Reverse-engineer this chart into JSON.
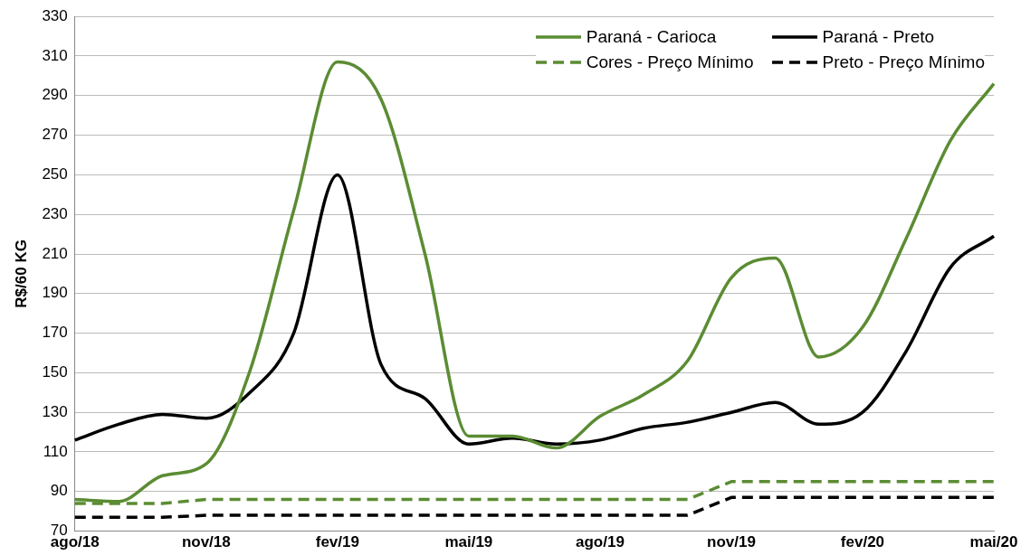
{
  "chart_data": {
    "type": "line",
    "ylabel": "R$/60 KG",
    "categories": [
      "ago/18",
      null,
      null,
      "nov/18",
      null,
      null,
      "fev/19",
      null,
      null,
      "mai/19",
      null,
      null,
      "ago/19",
      null,
      null,
      "nov/19",
      null,
      null,
      "fev/20",
      null,
      null,
      "mai/20"
    ],
    "series": [
      {
        "name": "Paraná - Carioca",
        "color": "#5b8c33",
        "line_style": "solid",
        "values": [
          86,
          85,
          98,
          104,
          151,
          232,
          307,
          288,
          210,
          118,
          118,
          112,
          128,
          139,
          156,
          198,
          208,
          158,
          173,
          218,
          267,
          296
        ]
      },
      {
        "name": "Paraná - Preto",
        "color": "#000000",
        "line_style": "solid",
        "values": [
          116,
          124,
          129,
          127,
          140,
          170,
          250,
          154,
          137,
          114,
          117,
          114,
          116,
          122,
          125,
          130,
          135,
          124,
          130,
          161,
          203,
          219
        ]
      },
      {
        "name": "Cores - Preço Mínimo",
        "color": "#5b8c33",
        "line_style": "dashed",
        "values": [
          84,
          84,
          84,
          86,
          86,
          86,
          86,
          86,
          86,
          86,
          86,
          86,
          86,
          86,
          86,
          95,
          95,
          95,
          95,
          95,
          95,
          95
        ]
      },
      {
        "name": "Preto - Preço Mínimo",
        "color": "#000000",
        "line_style": "dashed",
        "values": [
          77,
          77,
          77,
          78,
          78,
          78,
          78,
          78,
          78,
          78,
          78,
          78,
          78,
          78,
          78,
          87,
          87,
          87,
          87,
          87,
          87,
          87
        ]
      }
    ],
    "ylim": [
      70,
      330
    ],
    "yticks": [
      70,
      90,
      110,
      130,
      150,
      170,
      190,
      210,
      230,
      250,
      270,
      290,
      310,
      330
    ],
    "grid": "y",
    "legend": "top right",
    "marker": "none"
  }
}
